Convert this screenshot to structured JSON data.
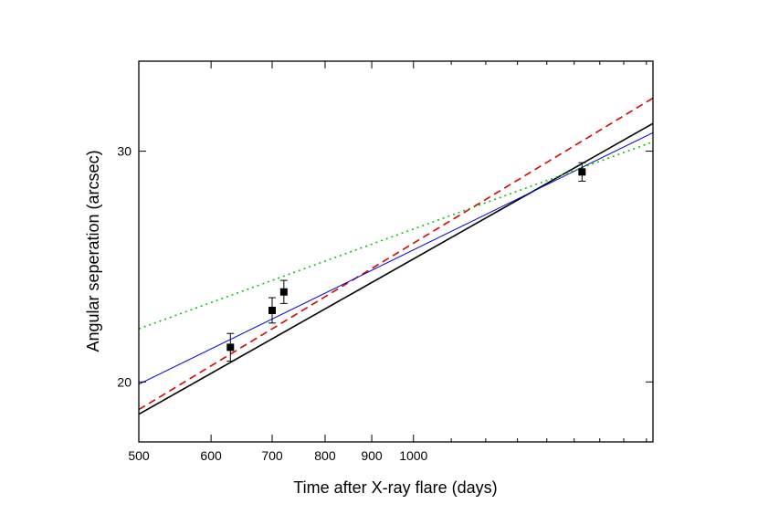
{
  "chart_data": {
    "type": "scatter",
    "title": "",
    "xlabel": "Time after X-ray flare (days)",
    "ylabel": "Angular seperation (arcsec)",
    "xscale": "log",
    "yscale": "linear",
    "xlim": [
      500,
      1830
    ],
    "ylim": [
      17.4,
      33.9
    ],
    "grid": false,
    "legend": "none",
    "x_ticks": [
      {
        "value": 500,
        "label": "500"
      },
      {
        "value": 600,
        "label": "600"
      },
      {
        "value": 700,
        "label": "700"
      },
      {
        "value": 800,
        "label": "800"
      },
      {
        "value": 900,
        "label": "900"
      },
      {
        "value": 1000,
        "label": "1000"
      }
    ],
    "y_ticks": [
      {
        "value": 20,
        "label": "20"
      },
      {
        "value": 30,
        "label": "30"
      }
    ],
    "data_points": [
      {
        "x": 630,
        "y": 21.5,
        "yerr": 0.6
      },
      {
        "x": 700,
        "y": 23.1,
        "yerr": 0.55
      },
      {
        "x": 721,
        "y": 23.9,
        "yerr": 0.5
      },
      {
        "x": 1530,
        "y": 29.1,
        "yerr": 0.4
      }
    ],
    "series": [
      {
        "color": "#000000",
        "style": "solid",
        "width": 1.6,
        "points": [
          [
            500,
            18.6
          ],
          [
            1830,
            31.2
          ]
        ]
      },
      {
        "color": "#e00000",
        "style": "dashed",
        "width": 1.6,
        "points": [
          [
            500,
            18.8
          ],
          [
            1830,
            32.3
          ]
        ]
      },
      {
        "color": "#0000e0",
        "style": "solid",
        "width": 1.0,
        "points": [
          [
            500,
            19.9
          ],
          [
            1830,
            30.8
          ]
        ]
      },
      {
        "color": "#00c800",
        "style": "dotted",
        "width": 1.6,
        "points": [
          [
            500,
            22.3
          ],
          [
            1830,
            30.4
          ]
        ]
      }
    ]
  }
}
